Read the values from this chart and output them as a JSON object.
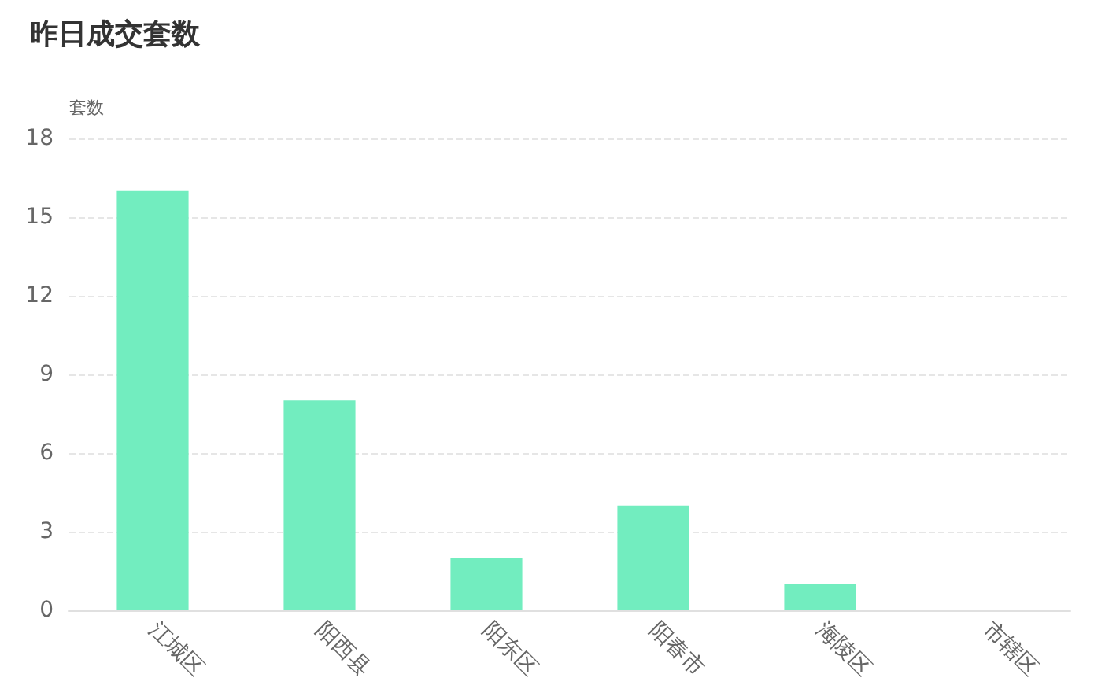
{
  "chart_data": {
    "type": "bar",
    "title": "昨日成交套数",
    "ylabel": "套数",
    "categories": [
      "江城区",
      "阳西县",
      "阳东区",
      "阳春市",
      "海陵区",
      "市辖区"
    ],
    "values": [
      16,
      8,
      2,
      4,
      1,
      0
    ],
    "color": "#72edbf",
    "ylim": [
      0,
      18
    ],
    "yticks": [
      0,
      3,
      6,
      9,
      12,
      15,
      18
    ],
    "grid": "y"
  }
}
